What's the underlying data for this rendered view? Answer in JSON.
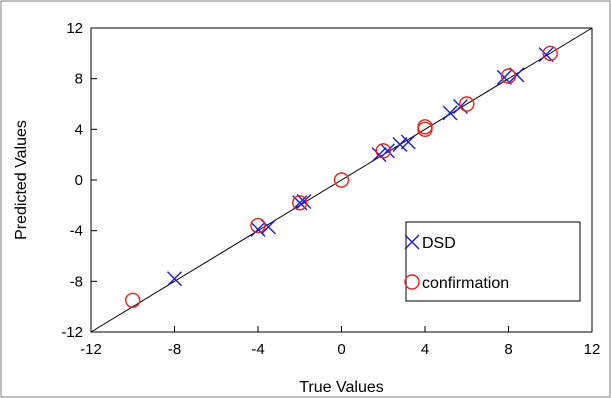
{
  "chart_data": {
    "type": "scatter",
    "xlabel": "True Values",
    "ylabel": "Predicted Values",
    "xlim": [
      -12,
      12
    ],
    "ylim": [
      -12,
      12
    ],
    "xticks": [
      -12,
      -8,
      -4,
      0,
      4,
      8,
      12
    ],
    "yticks": [
      -12,
      -8,
      -4,
      0,
      4,
      8,
      12
    ],
    "grid": false,
    "legend_position": "bottom-right",
    "reference_line": {
      "type": "y=x",
      "color": "#000000"
    },
    "series": [
      {
        "name": "DSD",
        "marker": "x",
        "color": "#1a1adb",
        "points": [
          [
            -8,
            -7.8
          ],
          [
            -4,
            -3.9
          ],
          [
            -3.5,
            -3.7
          ],
          [
            -2,
            -1.8
          ],
          [
            -1.8,
            -1.7
          ],
          [
            1.8,
            2.0
          ],
          [
            2.2,
            2.3
          ],
          [
            2.8,
            2.8
          ],
          [
            3.2,
            3.0
          ],
          [
            5.2,
            5.3
          ],
          [
            5.7,
            5.8
          ],
          [
            7.8,
            8.1
          ],
          [
            8.4,
            8.3
          ],
          [
            9.8,
            9.9
          ]
        ]
      },
      {
        "name": "confirmation",
        "marker": "circle",
        "color": "#e8241a",
        "points": [
          [
            -10,
            -9.5
          ],
          [
            -4,
            -3.6
          ],
          [
            -2,
            -1.8
          ],
          [
            0,
            0
          ],
          [
            2,
            2.3
          ],
          [
            4,
            4.2
          ],
          [
            4,
            4.0
          ],
          [
            6,
            6.0
          ],
          [
            8,
            8.2
          ],
          [
            10,
            10.0
          ]
        ]
      }
    ]
  }
}
